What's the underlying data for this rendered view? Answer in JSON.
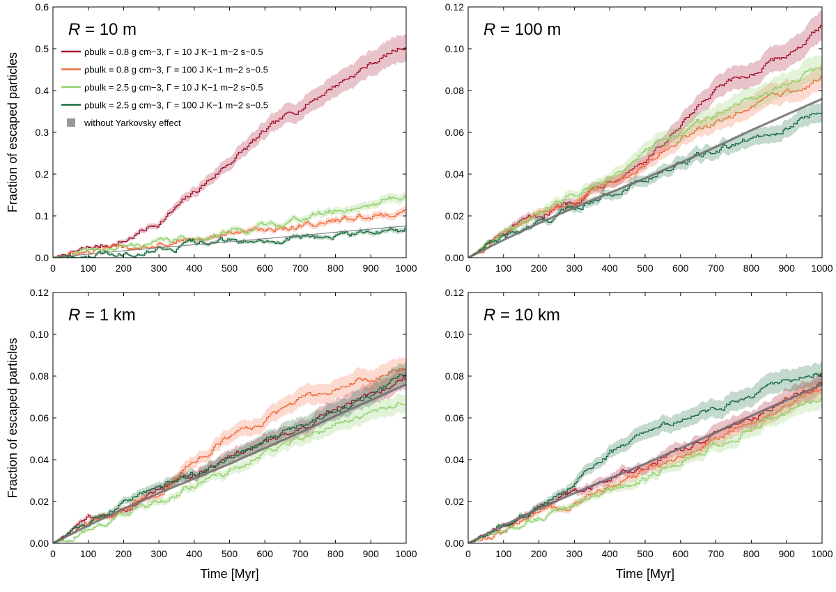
{
  "colors": {
    "s1": "#a50f2d",
    "s2": "#f26b3f",
    "s3": "#8fd16a",
    "s4": "#176b3f",
    "ref": "#6e6e6e",
    "ref_legend": "#999999"
  },
  "axes_text": {
    "xlabel": "Time [Myr]",
    "ylabel": "Fraction of escaped particles"
  },
  "legend": {
    "entries": [
      "ρbulk = 0.8 g cm−3,  Γ = 10 J K−1 m−2 s−0.5",
      "ρbulk = 0.8 g cm−3,  Γ = 100 J K−1 m−2 s−0.5",
      "ρbulk = 2.5 g cm−3,  Γ = 10 J K−1 m−2 s−0.5",
      "ρbulk = 2.5 g cm−3,  Γ = 100 J K−1 m−2 s−0.5",
      "without Yarkovsky effect"
    ]
  },
  "chart_data": [
    {
      "type": "line",
      "title": "R = 10 m",
      "xlabel": "Time [Myr]",
      "ylabel": "Fraction of escaped particles",
      "xlim": [
        0,
        1000
      ],
      "ylim": [
        0,
        0.6
      ],
      "xticks": [
        "0",
        "100",
        "200",
        "300",
        "400",
        "500",
        "600",
        "700",
        "800",
        "900",
        "1000"
      ],
      "yticks": [
        "0.0",
        "0.1",
        "0.2",
        "0.3",
        "0.4",
        "0.5",
        "0.6"
      ],
      "x": [
        0,
        100,
        200,
        300,
        400,
        500,
        600,
        700,
        800,
        900,
        1000
      ],
      "series": [
        {
          "name": "ρbulk = 0.8 g cm−3, Γ = 10 J K−1 m−2 s−0.5",
          "values": [
            0,
            0.02,
            0.04,
            0.085,
            0.155,
            0.23,
            0.3,
            0.36,
            0.415,
            0.465,
            0.51
          ]
        },
        {
          "name": "ρbulk = 0.8 g cm−3, Γ = 100 J K−1 m−2 s−0.5",
          "values": [
            0,
            0.012,
            0.024,
            0.036,
            0.046,
            0.056,
            0.067,
            0.078,
            0.088,
            0.1,
            0.112
          ]
        },
        {
          "name": "ρbulk = 2.5 g cm−3, Γ = 10 J K−1 m−2 s−0.5",
          "values": [
            0,
            0.012,
            0.025,
            0.036,
            0.048,
            0.062,
            0.077,
            0.095,
            0.112,
            0.13,
            0.15
          ]
        },
        {
          "name": "ρbulk = 2.5 g cm−3, Γ = 100 J K−1 m−2 s−0.5",
          "values": [
            0,
            0.008,
            0.016,
            0.024,
            0.031,
            0.038,
            0.044,
            0.049,
            0.054,
            0.06,
            0.066
          ]
        },
        {
          "name": "without Yarkovsky effect",
          "values": [
            0,
            0.0085,
            0.0165,
            0.024,
            0.031,
            0.038,
            0.0455,
            0.053,
            0.061,
            0.0685,
            0.076
          ]
        }
      ]
    },
    {
      "type": "line",
      "title": "R = 100 m",
      "xlabel": "Time [Myr]",
      "ylabel": "",
      "xlim": [
        0,
        1000
      ],
      "ylim": [
        0,
        0.12
      ],
      "xticks": [
        "0",
        "100",
        "200",
        "300",
        "400",
        "500",
        "600",
        "700",
        "800",
        "900",
        "1000"
      ],
      "yticks": [
        "0.00",
        "0.02",
        "0.04",
        "0.06",
        "0.08",
        "0.10",
        "0.12"
      ],
      "x": [
        0,
        100,
        200,
        300,
        400,
        500,
        600,
        700,
        800,
        900,
        1000
      ],
      "series": [
        {
          "name": "ρbulk = 0.8 g cm−3, Γ = 10 J K−1 m−2 s−0.5",
          "values": [
            0,
            0.011,
            0.02,
            0.028,
            0.038,
            0.047,
            0.062,
            0.08,
            0.088,
            0.097,
            0.11
          ]
        },
        {
          "name": "ρbulk = 0.8 g cm−3, Γ = 100 J K−1 m−2 s−0.5",
          "values": [
            0,
            0.011,
            0.02,
            0.029,
            0.037,
            0.046,
            0.056,
            0.064,
            0.072,
            0.079,
            0.086
          ]
        },
        {
          "name": "ρbulk = 2.5 g cm−3, Γ = 10 J K−1 m−2 s−0.5",
          "values": [
            0,
            0.012,
            0.022,
            0.031,
            0.04,
            0.05,
            0.06,
            0.068,
            0.076,
            0.084,
            0.091
          ]
        },
        {
          "name": "ρbulk = 2.5 g cm−3, Γ = 100 J K−1 m−2 s−0.5",
          "values": [
            0,
            0.01,
            0.016,
            0.024,
            0.031,
            0.038,
            0.045,
            0.051,
            0.057,
            0.063,
            0.071
          ]
        },
        {
          "name": "without Yarkovsky effect",
          "values": [
            0,
            0.0085,
            0.0165,
            0.024,
            0.031,
            0.038,
            0.0455,
            0.053,
            0.061,
            0.0685,
            0.076
          ]
        }
      ]
    },
    {
      "type": "line",
      "title": "R = 1 km",
      "xlabel": "Time [Myr]",
      "ylabel": "Fraction of escaped particles",
      "xlim": [
        0,
        1000
      ],
      "ylim": [
        0,
        0.12
      ],
      "xticks": [
        "0",
        "100",
        "200",
        "300",
        "400",
        "500",
        "600",
        "700",
        "800",
        "900",
        "1000"
      ],
      "yticks": [
        "0.00",
        "0.02",
        "0.04",
        "0.06",
        "0.08",
        "0.10",
        "0.12"
      ],
      "x": [
        0,
        100,
        200,
        300,
        400,
        500,
        600,
        700,
        800,
        900,
        1000
      ],
      "series": [
        {
          "name": "ρbulk = 0.8 g cm−3, Γ = 10 J K−1 m−2 s−0.5",
          "values": [
            0,
            0.01,
            0.016,
            0.026,
            0.033,
            0.04,
            0.048,
            0.055,
            0.064,
            0.072,
            0.08
          ]
        },
        {
          "name": "ρbulk = 0.8 g cm−3, Γ = 100 J K−1 m−2 s−0.5",
          "values": [
            0,
            0.009,
            0.017,
            0.025,
            0.04,
            0.051,
            0.059,
            0.068,
            0.074,
            0.079,
            0.084
          ]
        },
        {
          "name": "ρbulk = 2.5 g cm−3, Γ = 10 J K−1 m−2 s−0.5",
          "values": [
            0,
            0.007,
            0.014,
            0.02,
            0.028,
            0.034,
            0.043,
            0.05,
            0.056,
            0.062,
            0.067
          ]
        },
        {
          "name": "ρbulk = 2.5 g cm−3, Γ = 100 J K−1 m−2 s−0.5",
          "values": [
            0,
            0.01,
            0.02,
            0.029,
            0.033,
            0.041,
            0.049,
            0.057,
            0.064,
            0.071,
            0.081
          ]
        },
        {
          "name": "without Yarkovsky effect",
          "values": [
            0,
            0.0085,
            0.0165,
            0.024,
            0.031,
            0.038,
            0.0455,
            0.053,
            0.061,
            0.0685,
            0.076
          ]
        }
      ]
    },
    {
      "type": "line",
      "title": "R = 10 km",
      "xlabel": "Time [Myr]",
      "ylabel": "",
      "xlim": [
        0,
        1000
      ],
      "ylim": [
        0,
        0.12
      ],
      "xticks": [
        "0",
        "100",
        "200",
        "300",
        "400",
        "500",
        "600",
        "700",
        "800",
        "900",
        "1000"
      ],
      "yticks": [
        "0.00",
        "0.02",
        "0.04",
        "0.06",
        "0.08",
        "0.10",
        "0.12"
      ],
      "x": [
        0,
        100,
        200,
        300,
        400,
        500,
        600,
        700,
        800,
        900,
        1000
      ],
      "series": [
        {
          "name": "ρbulk = 0.8 g cm−3, Γ = 10 J K−1 m−2 s−0.5",
          "values": [
            0,
            0.009,
            0.017,
            0.025,
            0.031,
            0.038,
            0.045,
            0.053,
            0.06,
            0.068,
            0.077
          ]
        },
        {
          "name": "ρbulk = 0.8 g cm−3, Γ = 100 J K−1 m−2 s−0.5",
          "values": [
            0,
            0.006,
            0.013,
            0.02,
            0.028,
            0.034,
            0.042,
            0.05,
            0.059,
            0.067,
            0.075
          ]
        },
        {
          "name": "ρbulk = 2.5 g cm−3, Γ = 10 J K−1 m−2 s−0.5",
          "values": [
            0,
            0.006,
            0.012,
            0.019,
            0.025,
            0.031,
            0.039,
            0.047,
            0.055,
            0.062,
            0.071
          ]
        },
        {
          "name": "ρbulk = 2.5 g cm−3, Γ = 100 J K−1 m−2 s−0.5",
          "values": [
            0,
            0.008,
            0.017,
            0.029,
            0.043,
            0.052,
            0.059,
            0.064,
            0.071,
            0.077,
            0.082
          ]
        },
        {
          "name": "without Yarkovsky effect",
          "values": [
            0,
            0.0085,
            0.0165,
            0.024,
            0.031,
            0.038,
            0.0455,
            0.053,
            0.061,
            0.0685,
            0.076
          ]
        }
      ]
    }
  ]
}
